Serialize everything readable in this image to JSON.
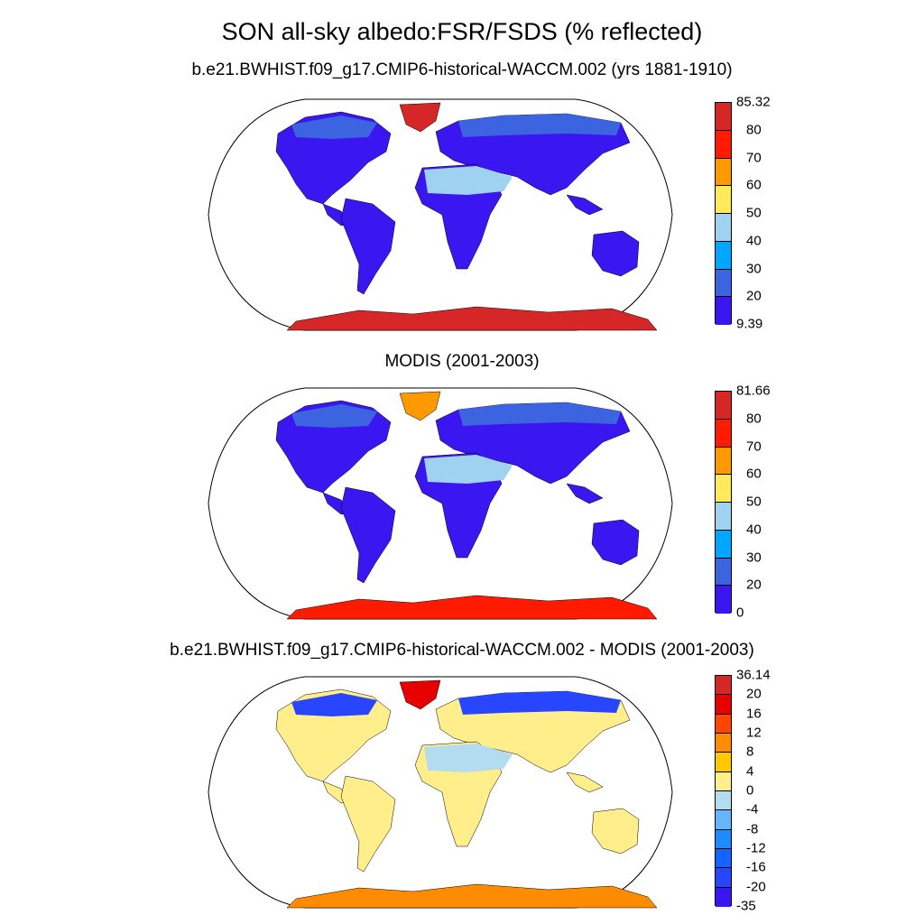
{
  "title": "SON all-sky albedo:FSR/FSDS (% reflected)",
  "panels": [
    {
      "title": "b.e21.BWHIST.f09_g17.CMIP6-historical-WACCM.002 (yrs 1881-1910)",
      "legend": {
        "labels": [
          "85.32",
          "80",
          "70",
          "60",
          "50",
          "40",
          "30",
          "20",
          "9.39"
        ],
        "colors": [
          "#d62728",
          "#ff1a00",
          "#ff9900",
          "#ffea5a",
          "#9ed2f0",
          "#00a6ff",
          "#3c64e0",
          "#3a16f0"
        ]
      },
      "fill": {
        "land": "#3a16f0",
        "north": "#3c64e0",
        "desert": "#9ed2f0",
        "greenland": "#d62728",
        "antarctica": "#d62728"
      }
    },
    {
      "title": "MODIS (2001-2003)",
      "legend": {
        "labels": [
          "81.66",
          "80",
          "70",
          "60",
          "50",
          "40",
          "30",
          "20",
          "0"
        ],
        "colors": [
          "#d62728",
          "#ff1a00",
          "#ff9900",
          "#ffea5a",
          "#9ed2f0",
          "#00a6ff",
          "#3c64e0",
          "#3a16f0"
        ]
      },
      "fill": {
        "land": "#3a16f0",
        "north": "#3c64e0",
        "desert": "#9ed2f0",
        "greenland": "#ff9900",
        "antarctica": "#ff1a00"
      }
    },
    {
      "title": "b.e21.BWHIST.f09_g17.CMIP6-historical-WACCM.002 - MODIS (2001-2003)",
      "legend": {
        "labels": [
          "36.14",
          "20",
          "16",
          "12",
          "8",
          "4",
          "0",
          "-4",
          "-8",
          "-12",
          "-16",
          "-20",
          "-35"
        ],
        "colors": [
          "#d62728",
          "#e60000",
          "#ff4500",
          "#ff8c00",
          "#ffc800",
          "#ffee8a",
          "#b4dcf0",
          "#64b4ff",
          "#1e8cff",
          "#1464ff",
          "#2846ff",
          "#3a16f0"
        ]
      },
      "fill": {
        "land": "#ffee8a",
        "north": "#2846ff",
        "desert": "#b4dcf0",
        "greenland": "#e60000",
        "antarctica": "#ff8c00"
      }
    }
  ]
}
